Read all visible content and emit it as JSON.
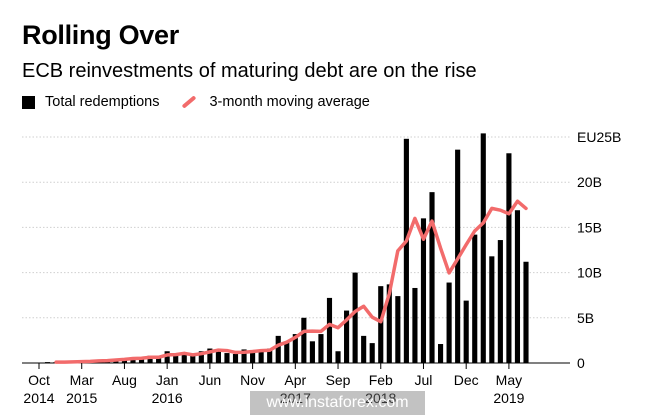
{
  "title": "Rolling Over",
  "subtitle": "ECB reinvestments of maturing debt are on the rise",
  "legend": {
    "bars": "Total redemptions",
    "line": "3-month moving average"
  },
  "watermark": "www.instaforex.com",
  "colors": {
    "bars": "#000000",
    "line": "#f26b6b",
    "grid": "#cfcfcf"
  },
  "chart_data": {
    "type": "bar",
    "x_start": "Oct 2014",
    "y_ticks": [
      "0",
      "5B",
      "10B",
      "15B",
      "20B",
      "EU25B"
    ],
    "y_tick_values": [
      0,
      5,
      10,
      15,
      20,
      25
    ],
    "ylim": [
      0,
      25
    ],
    "grid": true,
    "legend_position": "top-left",
    "x_ticks": [
      {
        "index": 0,
        "month": "Oct",
        "year": "2014"
      },
      {
        "index": 5,
        "month": "Mar",
        "year": "2015"
      },
      {
        "index": 10,
        "month": "Aug",
        "year": ""
      },
      {
        "index": 15,
        "month": "Jan",
        "year": "2016"
      },
      {
        "index": 20,
        "month": "Jun",
        "year": ""
      },
      {
        "index": 25,
        "month": "Nov",
        "year": ""
      },
      {
        "index": 30,
        "month": "Apr",
        "year": "2017"
      },
      {
        "index": 35,
        "month": "Sep",
        "year": ""
      },
      {
        "index": 40,
        "month": "Feb",
        "year": "2018"
      },
      {
        "index": 45,
        "month": "Jul",
        "year": ""
      },
      {
        "index": 50,
        "month": "Dec",
        "year": ""
      },
      {
        "index": 55,
        "month": "May",
        "year": "2019"
      }
    ],
    "series": [
      {
        "name": "Total redemptions",
        "kind": "bar",
        "values": [
          0.05,
          0.1,
          0.1,
          0.1,
          0.15,
          0.2,
          0.2,
          0.3,
          0.3,
          0.4,
          0.5,
          0.6,
          0.5,
          0.8,
          0.6,
          1.3,
          0.9,
          1.0,
          0.8,
          1.3,
          1.6,
          1.4,
          1.1,
          1.0,
          1.5,
          1.3,
          1.3,
          1.6,
          3.0,
          2.3,
          3.2,
          5.0,
          2.4,
          3.2,
          7.2,
          1.3,
          5.8,
          10.0,
          3.0,
          2.2,
          8.5,
          8.7,
          7.4,
          24.8,
          8.3,
          16.0,
          18.9,
          2.1,
          8.9,
          23.6,
          6.9,
          14.2,
          25.4,
          11.8,
          13.6,
          23.2,
          16.9,
          11.2
        ]
      },
      {
        "name": "3-month moving average",
        "kind": "line",
        "start_index": 2,
        "values": [
          0.1,
          0.1,
          0.12,
          0.15,
          0.18,
          0.23,
          0.27,
          0.33,
          0.4,
          0.5,
          0.53,
          0.63,
          0.63,
          0.9,
          0.93,
          1.07,
          0.9,
          1.03,
          1.23,
          1.43,
          1.37,
          1.17,
          1.2,
          1.27,
          1.37,
          1.4,
          1.97,
          2.3,
          2.83,
          3.5,
          3.53,
          3.5,
          4.27,
          3.9,
          4.77,
          5.7,
          6.27,
          5.07,
          4.57,
          7.67,
          12.4,
          13.5,
          16.0,
          13.7,
          15.7,
          12.7,
          9.97,
          11.5,
          13.1,
          14.6,
          15.5,
          17.1,
          16.9,
          16.5,
          17.9,
          17.1
        ]
      }
    ]
  }
}
